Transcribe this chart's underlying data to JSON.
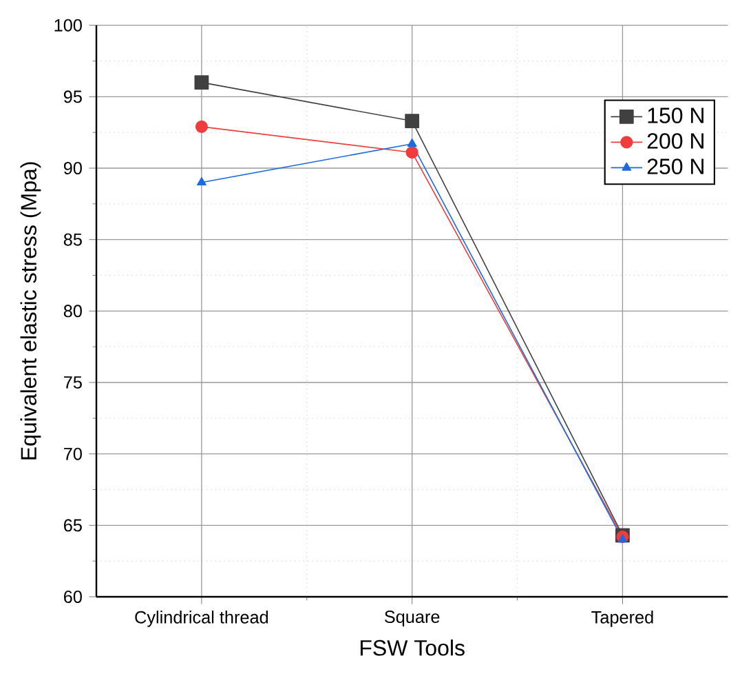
{
  "chart_data": {
    "type": "line",
    "xlabel": "FSW Tools",
    "ylabel": "Equivalent elastic stress (Mpa)",
    "categories": [
      "Cylindrical thread",
      "Square",
      "Tapered"
    ],
    "series": [
      {
        "name": "150 N",
        "color": "#404040",
        "marker": "square",
        "values": [
          96.0,
          93.3,
          64.3
        ]
      },
      {
        "name": "200 N",
        "color": "#f03c3c",
        "marker": "circle",
        "values": [
          92.9,
          91.1,
          64.2
        ]
      },
      {
        "name": "250 N",
        "color": "#1a6be0",
        "marker": "triangle",
        "values": [
          89.0,
          91.7,
          64.0
        ]
      }
    ],
    "ylim": [
      60,
      100
    ],
    "yticks": [
      60,
      65,
      70,
      75,
      80,
      85,
      90,
      95,
      100
    ],
    "grid": true,
    "legend": "top right",
    "line_style": "solid"
  }
}
